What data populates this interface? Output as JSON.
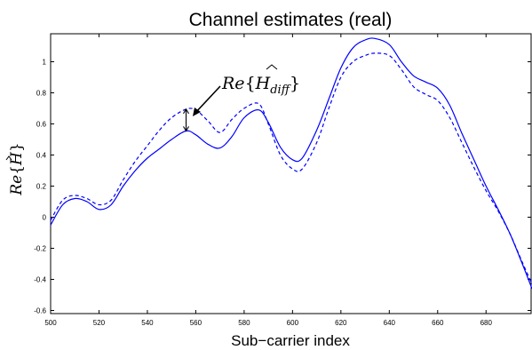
{
  "chart_data": {
    "type": "line",
    "title": "Channel estimates (real)",
    "xlabel": "Sub−carrier index",
    "ylabel": {
      "base": "Re",
      "sym": "H"
    },
    "xlim": [
      500,
      699
    ],
    "ylim": [
      -0.62,
      1.18
    ],
    "xticks": [
      500,
      520,
      540,
      560,
      580,
      600,
      620,
      640,
      660,
      680
    ],
    "yticks": [
      -0.6,
      -0.4,
      -0.2,
      0,
      0.2,
      0.4,
      0.6,
      0.8,
      1
    ],
    "grid": false,
    "annotation": {
      "base": "Re",
      "sym": "H",
      "sub": "diff",
      "x": 556,
      "y_low": 0.555,
      "y_high": 0.695
    },
    "series": [
      {
        "style": "solid",
        "color": "#0000ff",
        "x": [
          500,
          505,
          510,
          515,
          520,
          525,
          530,
          535,
          540,
          545,
          550,
          556,
          560,
          565,
          570,
          575,
          580,
          586,
          590,
          595,
          600,
          604,
          610,
          615,
          620,
          625,
          630,
          634,
          640,
          645,
          650,
          655,
          660,
          665,
          670,
          675,
          680,
          685,
          690,
          695,
          699
        ],
        "y": [
          -0.05,
          0.08,
          0.12,
          0.1,
          0.05,
          0.08,
          0.2,
          0.3,
          0.38,
          0.44,
          0.5,
          0.555,
          0.53,
          0.47,
          0.445,
          0.52,
          0.64,
          0.69,
          0.61,
          0.45,
          0.37,
          0.38,
          0.56,
          0.76,
          0.96,
          1.09,
          1.14,
          1.15,
          1.11,
          1.0,
          0.91,
          0.87,
          0.83,
          0.72,
          0.54,
          0.37,
          0.2,
          0.05,
          -0.11,
          -0.3,
          -0.46
        ]
      },
      {
        "style": "dashed",
        "color": "#0000ff",
        "x": [
          500,
          505,
          510,
          515,
          520,
          525,
          530,
          535,
          540,
          545,
          550,
          556,
          560,
          565,
          570,
          575,
          580,
          586,
          590,
          595,
          600,
          604,
          610,
          615,
          620,
          625,
          630,
          634,
          640,
          645,
          650,
          655,
          660,
          665,
          670,
          675,
          680,
          685,
          690,
          695,
          699
        ],
        "y": [
          -0.02,
          0.11,
          0.14,
          0.12,
          0.08,
          0.11,
          0.24,
          0.36,
          0.46,
          0.56,
          0.64,
          0.695,
          0.69,
          0.62,
          0.545,
          0.63,
          0.7,
          0.73,
          0.6,
          0.4,
          0.31,
          0.31,
          0.48,
          0.7,
          0.9,
          1.0,
          1.04,
          1.055,
          1.04,
          0.95,
          0.84,
          0.79,
          0.75,
          0.64,
          0.48,
          0.32,
          0.17,
          0.04,
          -0.11,
          -0.29,
          -0.43
        ]
      }
    ]
  }
}
